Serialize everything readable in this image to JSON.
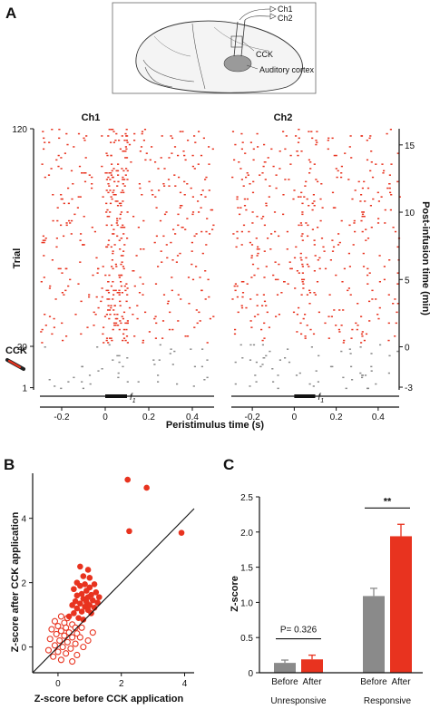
{
  "panels": {
    "a": "A",
    "b": "B",
    "c": "C"
  },
  "schematic": {
    "labels": [
      "Ch1",
      "Ch2",
      "CCK",
      "Auditory cortex"
    ]
  },
  "colors": {
    "after": "#e8331f",
    "before": "#8a8a8a",
    "axis": "#111111"
  },
  "chart_data": [
    {
      "type": "scatter",
      "name": "raster",
      "channels": [
        "Ch1",
        "Ch2"
      ],
      "xlabel": "Peristimulus time (s)",
      "ylabel_left": "Trial",
      "ylabel_right": "Post-infusion time (min)",
      "x_ticks": [
        -0.2,
        0,
        0.2,
        0.4
      ],
      "xlim": [
        -0.3,
        0.5
      ],
      "trial_ticks": [
        1,
        20,
        120
      ],
      "trial_range": [
        0,
        120
      ],
      "time_ticks": [
        -3,
        0,
        5,
        10,
        15
      ],
      "time_range": [
        -3.2,
        16.2
      ],
      "cck_marker": "CCK",
      "cck_trial": 21,
      "stimulus_label": "f",
      "stimulus_subscript": "1",
      "stimulus_window": [
        0,
        0.1
      ],
      "pre_cck_color": "#8a8a8a",
      "post_cck_color": "#e8331f"
    },
    {
      "type": "scatter",
      "name": "zscore-scatter",
      "xlabel": "Z-score before CCK application",
      "ylabel": "Z-score after CCK application",
      "xlim": [
        -0.8,
        4.3
      ],
      "ylim": [
        -0.8,
        5.4
      ],
      "x_ticks": [
        0,
        2,
        4
      ],
      "y_ticks": [
        0,
        2,
        4
      ],
      "unity_line": true,
      "filled_points": [
        [
          2.2,
          5.2
        ],
        [
          2.8,
          4.95
        ],
        [
          2.25,
          3.6
        ],
        [
          3.9,
          3.55
        ],
        [
          0.7,
          2.5
        ],
        [
          0.95,
          2.4
        ],
        [
          0.8,
          2.2
        ],
        [
          1.0,
          2.15
        ],
        [
          0.6,
          2.0
        ],
        [
          0.85,
          1.95
        ],
        [
          1.15,
          1.95
        ],
        [
          0.7,
          1.9
        ],
        [
          1.0,
          1.85
        ],
        [
          0.5,
          1.8
        ],
        [
          0.9,
          1.75
        ],
        [
          1.2,
          1.7
        ],
        [
          0.75,
          1.65
        ],
        [
          1.05,
          1.62
        ],
        [
          0.6,
          1.6
        ],
        [
          0.95,
          1.55
        ],
        [
          1.3,
          1.55
        ],
        [
          0.8,
          1.5
        ],
        [
          1.1,
          1.45
        ],
        [
          0.55,
          1.42
        ],
        [
          0.9,
          1.4
        ],
        [
          1.25,
          1.38
        ],
        [
          0.7,
          1.35
        ],
        [
          1.0,
          1.3
        ],
        [
          0.45,
          1.3
        ],
        [
          0.85,
          1.25
        ],
        [
          1.15,
          1.22
        ],
        [
          0.6,
          1.2
        ],
        [
          0.95,
          1.15
        ],
        [
          0.75,
          1.1
        ],
        [
          0.5,
          1.05
        ],
        [
          1.05,
          1.05
        ],
        [
          0.35,
          0.95
        ],
        [
          0.65,
          0.9
        ],
        [
          0.8,
          0.85
        ]
      ],
      "open_points": [
        [
          0.1,
          0.95
        ],
        [
          0.3,
          0.9
        ],
        [
          -0.1,
          0.8
        ],
        [
          0.2,
          0.75
        ],
        [
          0.45,
          0.7
        ],
        [
          0.0,
          0.65
        ],
        [
          0.25,
          0.6
        ],
        [
          0.55,
          0.6
        ],
        [
          -0.2,
          0.55
        ],
        [
          0.1,
          0.5
        ],
        [
          0.35,
          0.45
        ],
        [
          0.6,
          0.42
        ],
        [
          -0.05,
          0.4
        ],
        [
          0.2,
          0.35
        ],
        [
          0.45,
          0.3
        ],
        [
          0.7,
          0.3
        ],
        [
          -0.25,
          0.25
        ],
        [
          0.05,
          0.2
        ],
        [
          0.3,
          0.15
        ],
        [
          0.55,
          0.1
        ],
        [
          -0.1,
          0.05
        ],
        [
          0.15,
          0.0
        ],
        [
          0.4,
          -0.05
        ],
        [
          0.8,
          0.0
        ],
        [
          -0.3,
          -0.1
        ],
        [
          0.0,
          -0.15
        ],
        [
          0.25,
          -0.2
        ],
        [
          0.6,
          -0.25
        ],
        [
          -0.15,
          -0.3
        ],
        [
          0.1,
          -0.4
        ],
        [
          0.45,
          -0.45
        ],
        [
          0.95,
          0.2
        ],
        [
          1.1,
          0.45
        ],
        [
          0.75,
          0.6
        ]
      ]
    },
    {
      "type": "bar",
      "name": "zscore-bars",
      "ylabel": "Z-score",
      "ylim": [
        0,
        2.5
      ],
      "y_ticks": [
        0,
        0.5,
        1.0,
        1.5,
        2.0,
        2.5
      ],
      "y_tick_labels": [
        "0",
        "0.5",
        "1.0",
        "1.5",
        "2.0",
        "2.5"
      ],
      "groups": [
        {
          "name": "Unresponsive",
          "bars": [
            {
              "label": "Before",
              "value": 0.14,
              "error": 0.04
            },
            {
              "label": "After",
              "value": 0.19,
              "error": 0.06
            }
          ],
          "annotation": "P= 0.326"
        },
        {
          "name": "Responsive",
          "bars": [
            {
              "label": "Before",
              "value": 1.09,
              "error": 0.11
            },
            {
              "label": "After",
              "value": 1.94,
              "error": 0.17
            }
          ],
          "annotation": "**"
        }
      ]
    }
  ]
}
